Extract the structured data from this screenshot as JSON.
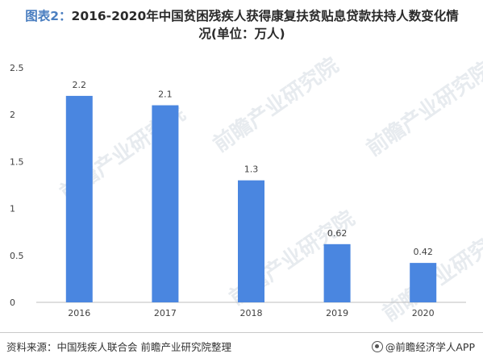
{
  "header": {
    "prefix": "图表2：",
    "title_rest": "2016-2020年中国贫困残疾人获得康复扶贫贴息贷款扶持人数变化情",
    "title_line2": "况(单位：万人)"
  },
  "footer": {
    "source": "资料来源：中国残疾人联合会 前瞻产业研究院整理",
    "app_label": "@前瞻经济学人APP",
    "app_icon": "qianzhan-logo-icon"
  },
  "watermark": {
    "text": "前瞻产业研究院"
  },
  "colors": {
    "bar": "#4a86e0",
    "grid": "#dddddd",
    "axis": "#bfbfbf",
    "text": "#404040"
  },
  "chart_data": {
    "type": "bar",
    "title": "图表2：2016-2020年中国贫困残疾人获得康复扶贫贴息贷款扶持人数变化情况(单位：万人)",
    "categories": [
      "2016",
      "2017",
      "2018",
      "2019",
      "2020"
    ],
    "values": [
      2.2,
      2.1,
      1.3,
      0.62,
      0.42
    ],
    "value_labels": [
      "2.2",
      "2.1",
      "1.3",
      "0.62",
      "0.42"
    ],
    "ylim": [
      0,
      2.5
    ],
    "yticks": [
      0,
      0.5,
      1,
      1.5,
      2,
      2.5
    ],
    "ytick_labels": [
      "0",
      "0.5",
      "1",
      "1.5",
      "2",
      "2.5"
    ],
    "grid": false,
    "legend": "none",
    "xlabel": "",
    "ylabel": ""
  }
}
